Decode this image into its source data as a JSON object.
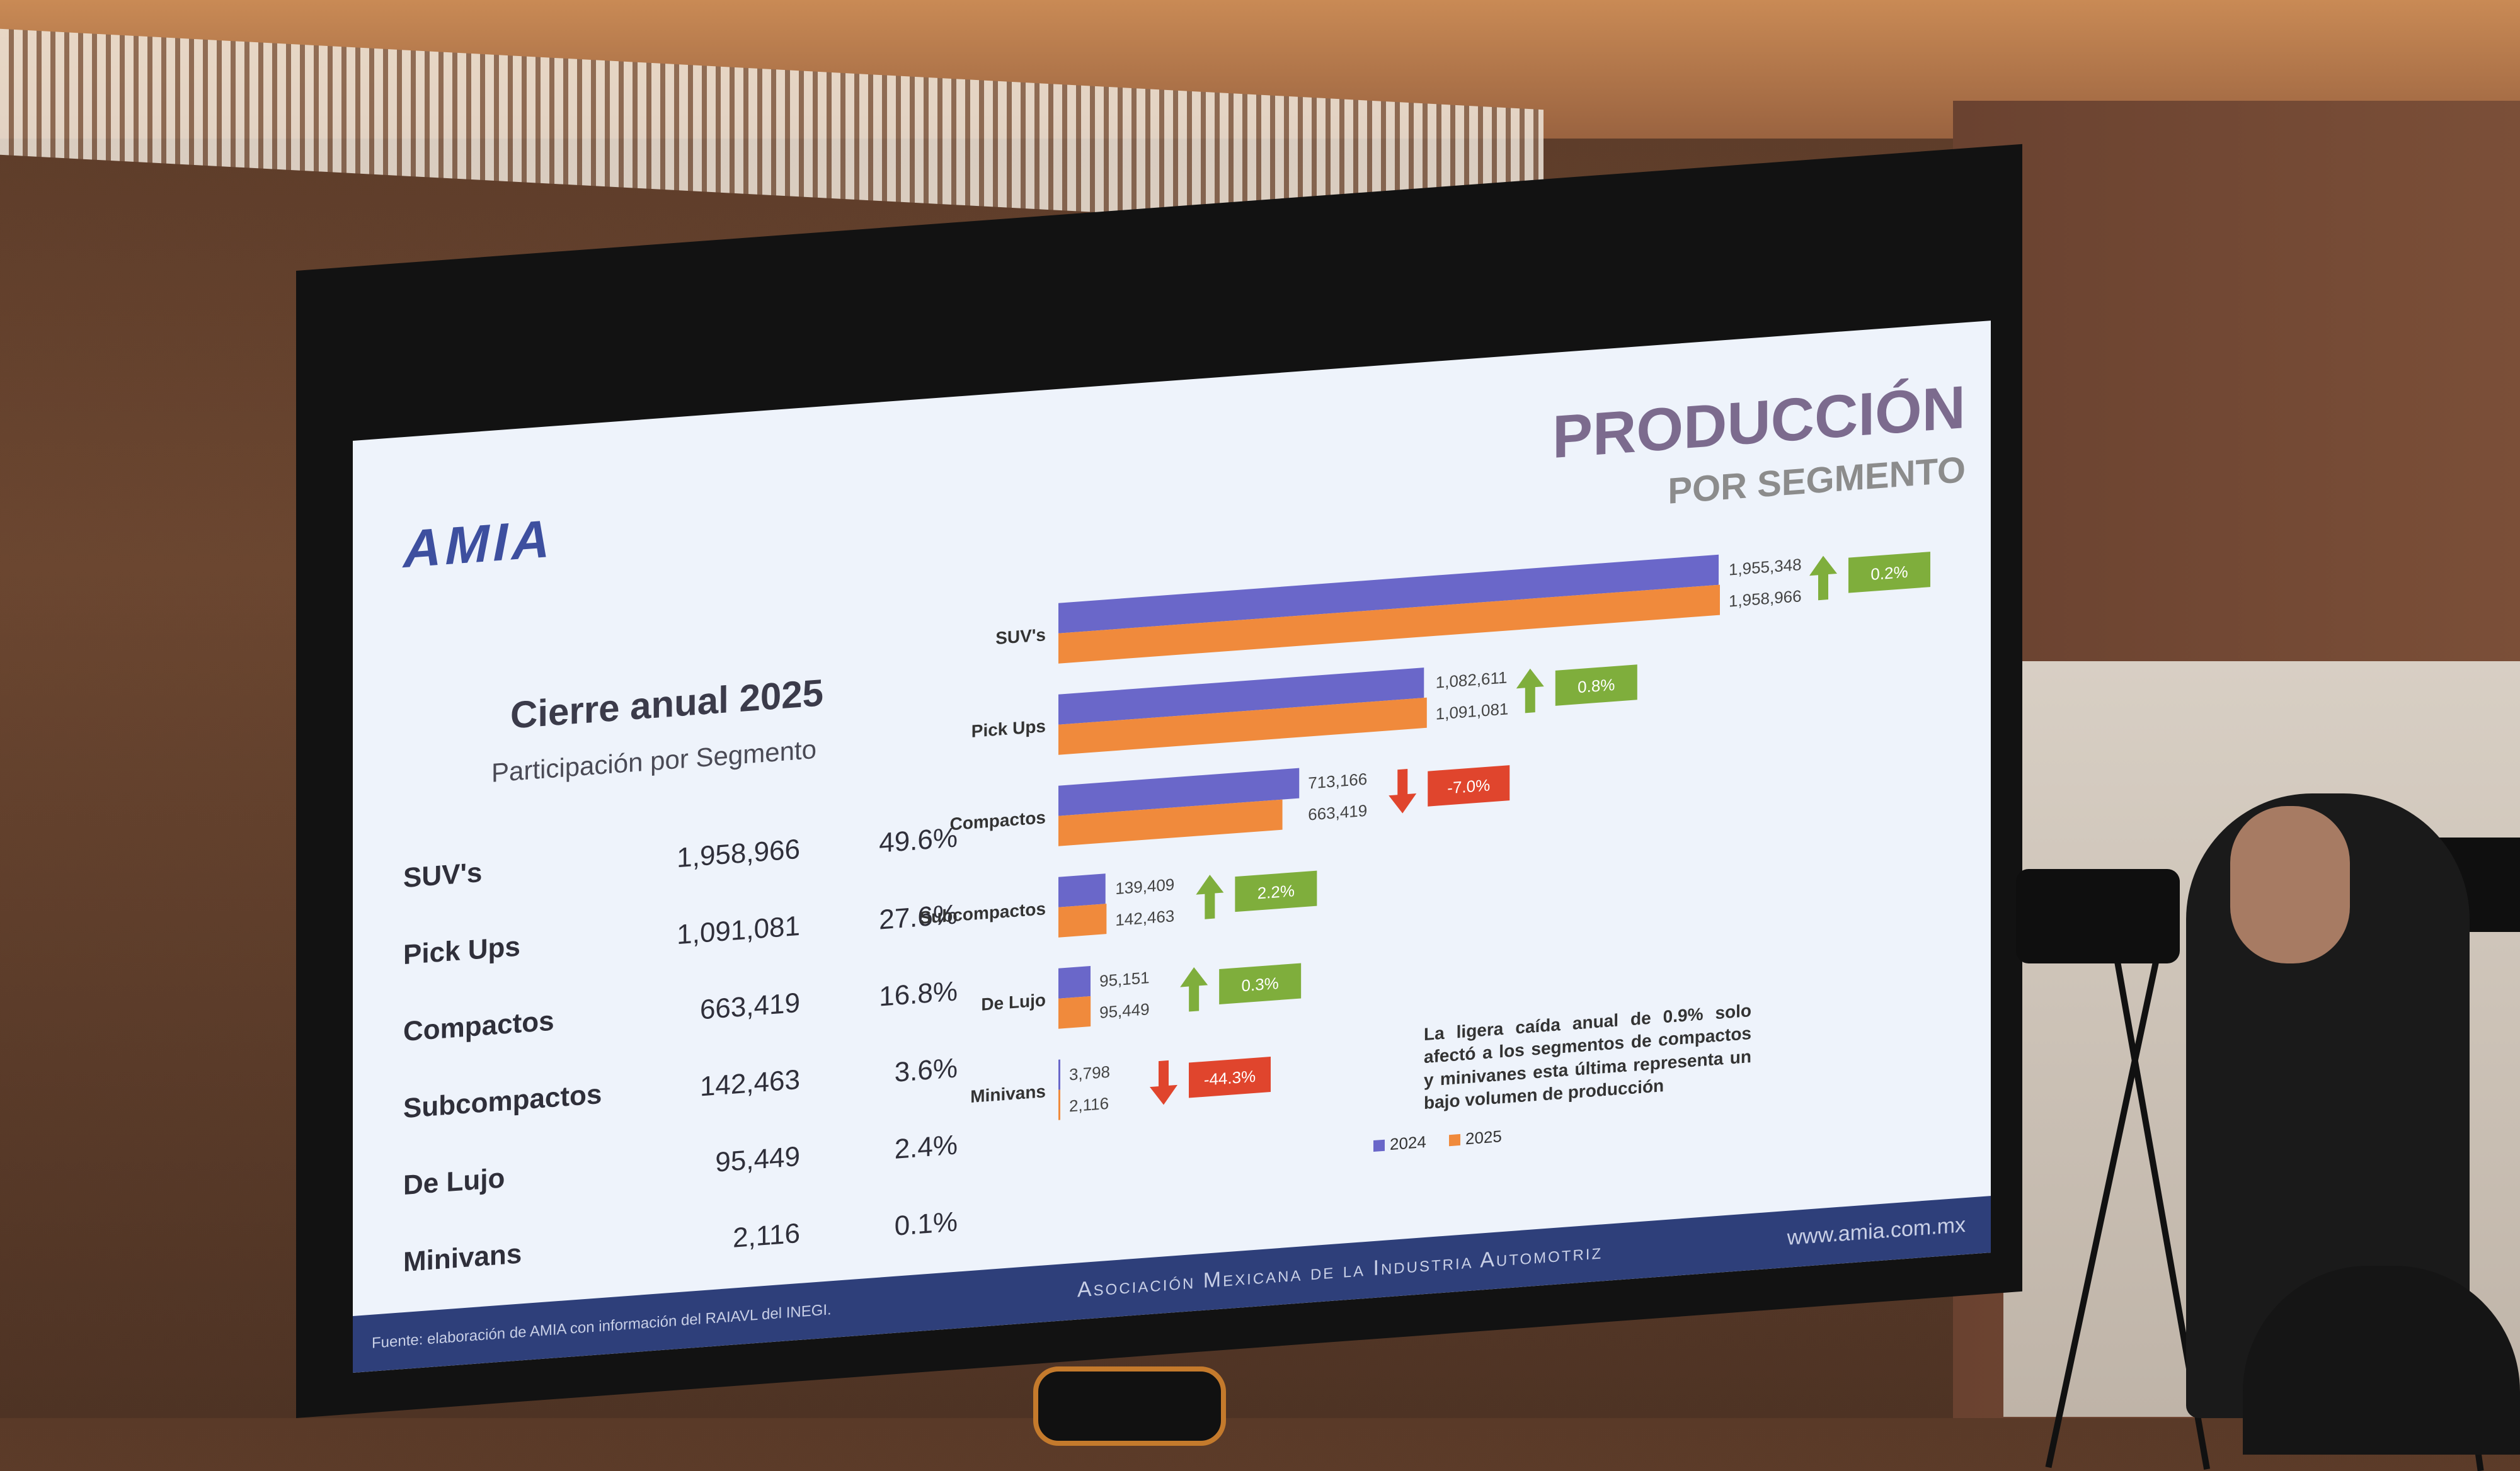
{
  "slide": {
    "logo": "AMIA",
    "title": "PRODUCCIÓN",
    "subtitle": "POR SEGMENTO",
    "section_title": "Cierre anual 2025",
    "section_subtitle": "Participación por Segmento",
    "note": "La ligera caída anual de 0.9% solo afectó a los segmentos de compactos y minivanes esta última representa un bajo volumen de producción",
    "footer_source": "Fuente: elaboración de AMIA con información del RAIAVL del INEGI.",
    "footer_assoc": "Asociación Mexicana de la Industria Automotriz",
    "footer_url": "www.amia.com.mx"
  },
  "segments_table": [
    {
      "name": "SUV's",
      "value": "1,958,966",
      "pct": "49.6%"
    },
    {
      "name": "Pick Ups",
      "value": "1,091,081",
      "pct": "27.6%"
    },
    {
      "name": "Compactos",
      "value": "663,419",
      "pct": "16.8%"
    },
    {
      "name": "Subcompactos",
      "value": "142,463",
      "pct": "3.6%"
    },
    {
      "name": "De Lujo",
      "value": "95,449",
      "pct": "2.4%"
    },
    {
      "name": "Minivans",
      "value": "2,116",
      "pct": "0.1%"
    }
  ],
  "chart_data": {
    "type": "bar",
    "orientation": "horizontal",
    "categories": [
      "SUV's",
      "Pick Ups",
      "Compactos",
      "Subcompactos",
      "De Lujo",
      "Minivans"
    ],
    "series": [
      {
        "name": "2024",
        "color": "#6a67c9",
        "values": [
          1955348,
          1082611,
          713166,
          139409,
          95151,
          3798
        ]
      },
      {
        "name": "2025",
        "color": "#f08a3c",
        "values": [
          1958966,
          1091081,
          663419,
          142463,
          95449,
          2116
        ]
      }
    ],
    "labels_2024": [
      "1,955,348",
      "1,082,611",
      "713,166",
      "139,409",
      "95,151",
      "3,798"
    ],
    "labels_2025": [
      "1,958,966",
      "1,091,081",
      "663,419",
      "142,463",
      "95,449",
      "2,116"
    ],
    "changes": [
      "0.2%",
      "0.8%",
      "-7.0%",
      "2.2%",
      "0.3%",
      "-44.3%"
    ],
    "change_direction": [
      "up",
      "up",
      "down",
      "up",
      "up",
      "down"
    ],
    "up_color": "#7fae3c",
    "down_color": "#e0452d",
    "legend_position": "bottom-right",
    "xlim": [
      0,
      1958966
    ],
    "grid": false
  }
}
